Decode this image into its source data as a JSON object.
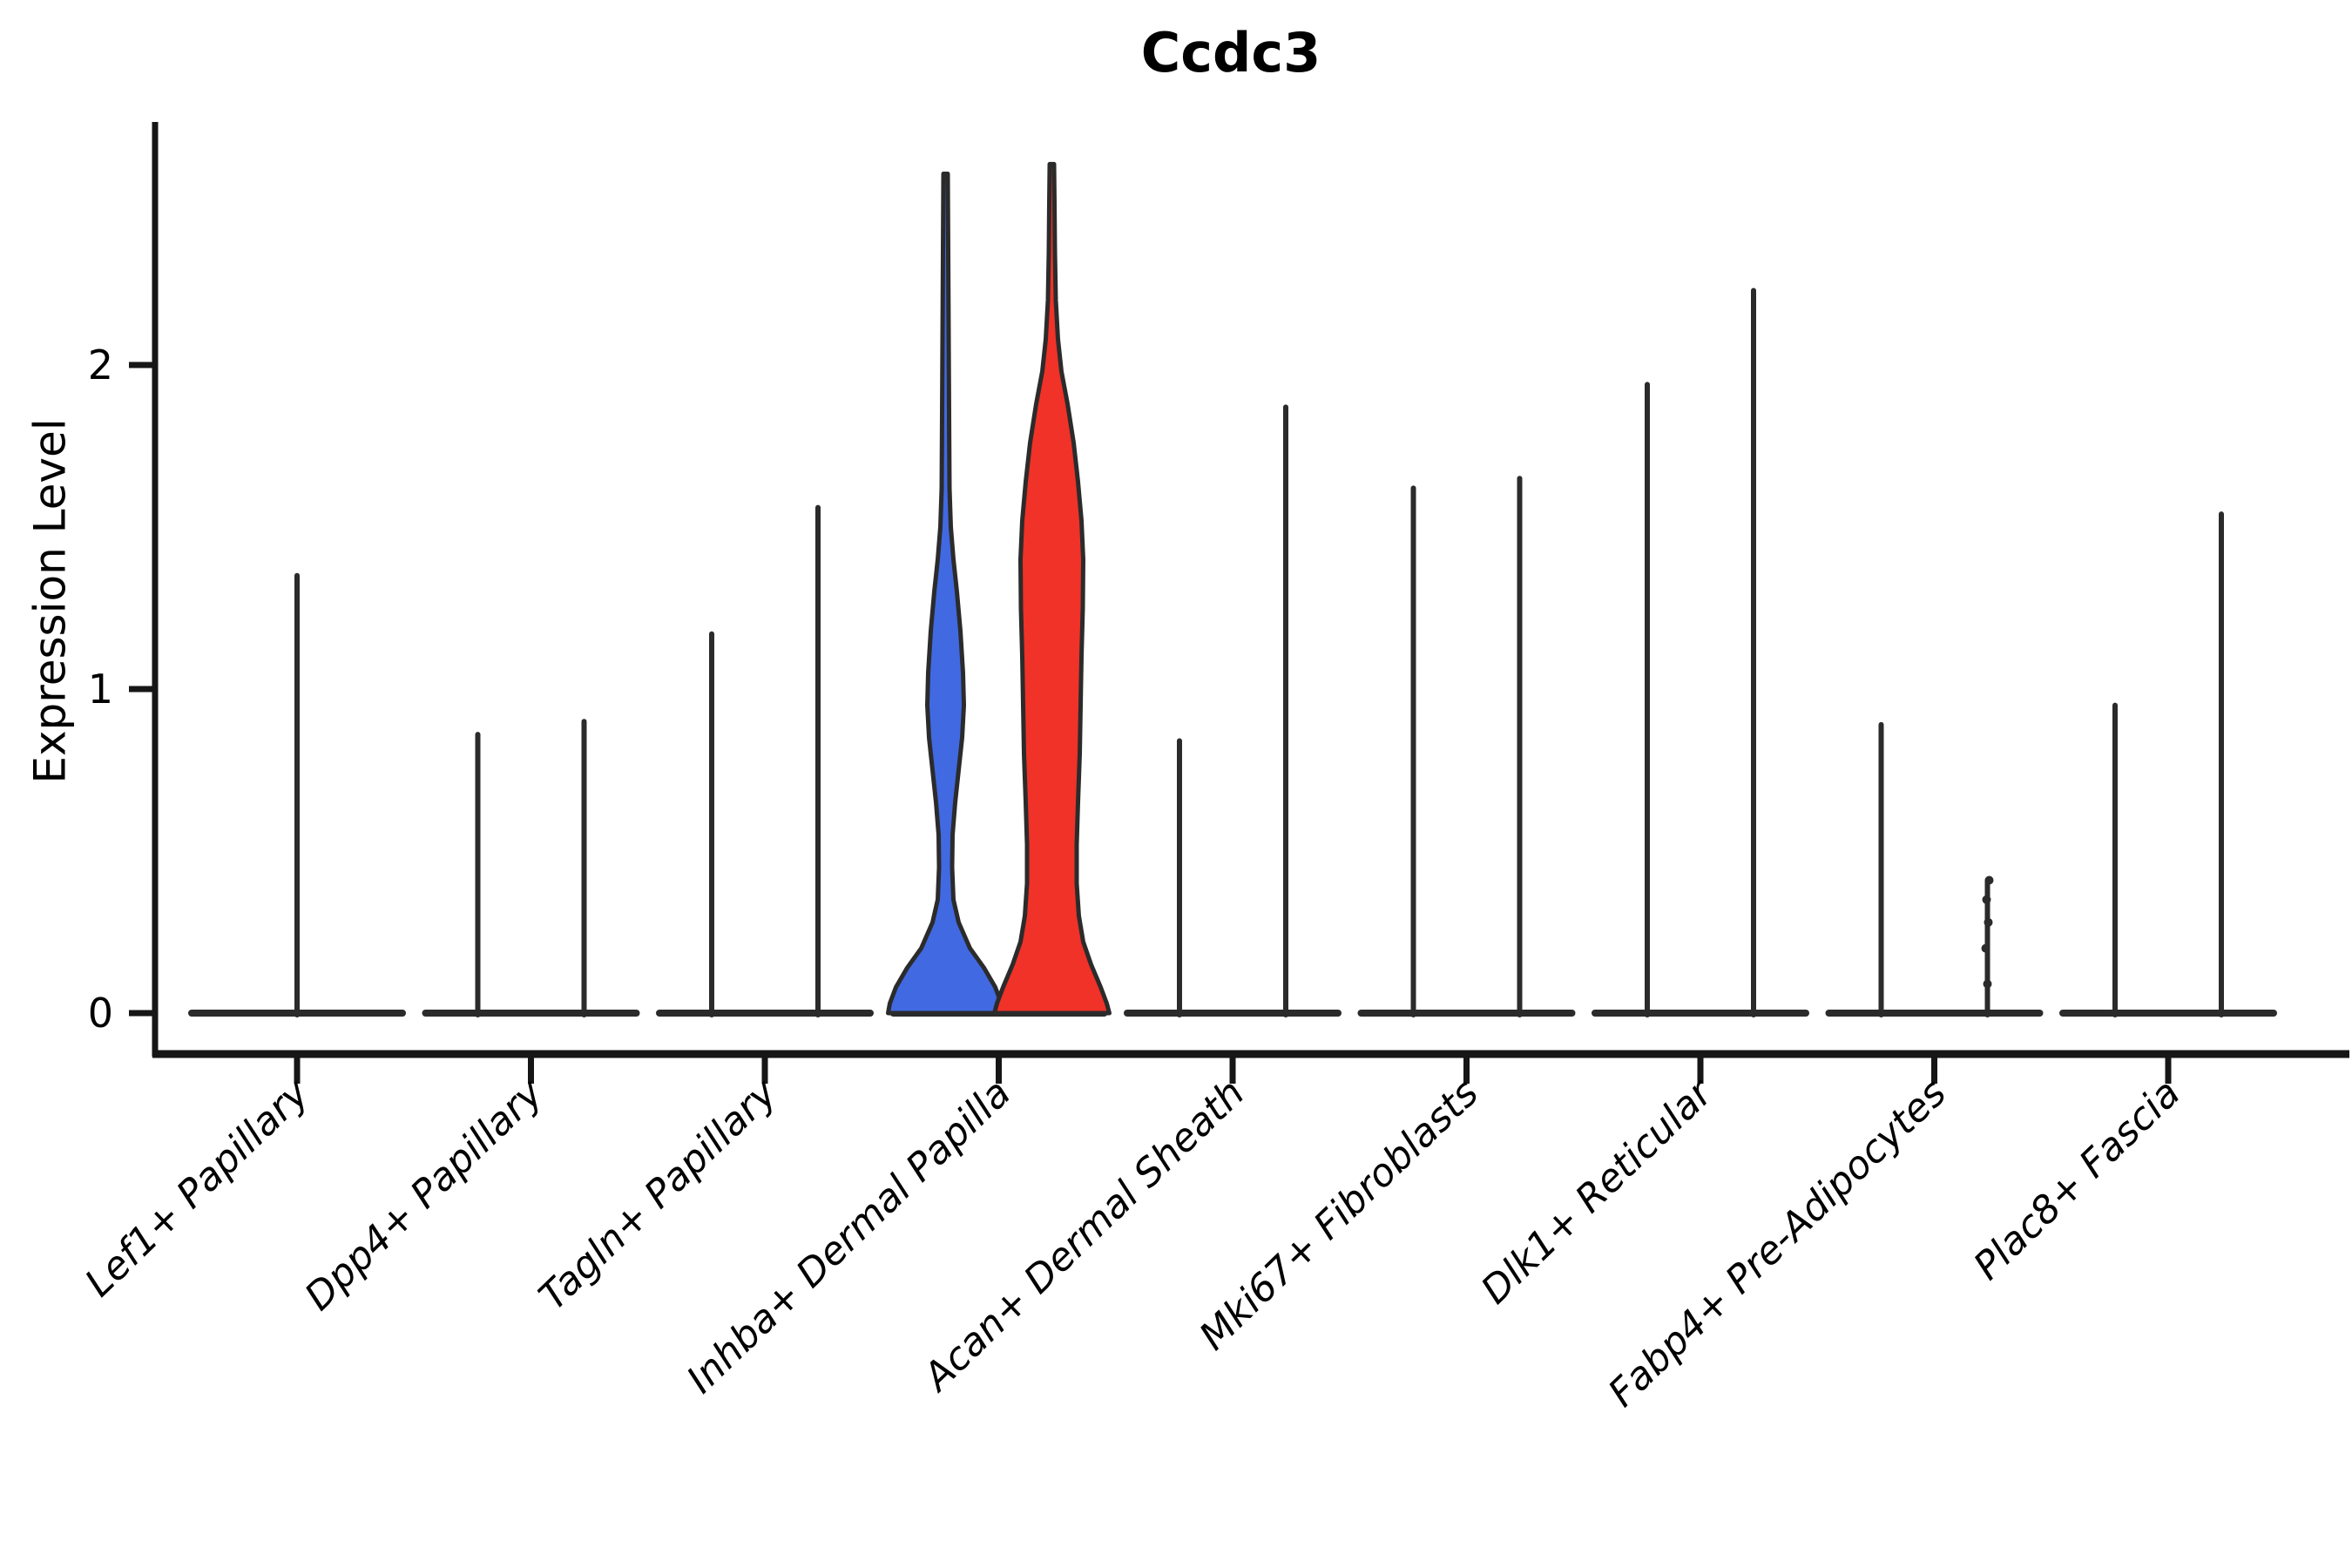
{
  "title": "Ccdc3",
  "axes": {
    "ylabel": "Expression Level",
    "yticks": [
      "0",
      "1",
      "2"
    ]
  },
  "chart_data": {
    "type": "violin",
    "title": "Ccdc3",
    "xlabel": "",
    "ylabel": "Expression Level",
    "yticks": [
      0,
      1,
      2
    ],
    "ylim": [
      0,
      2.75
    ],
    "grid": false,
    "legend": "none",
    "colors": {
      "blue_fill": "#4169E1",
      "red_fill": "#F03228",
      "outline": "#2B2B2B",
      "axis": "#161616",
      "text": "#000000"
    },
    "categories": [
      "Lef1+ Papillary",
      "Dpp4+ Papillary",
      "Tagln+ Papillary",
      "Inhba+ Dermal Papilla",
      "Acan+ Dermal Sheath",
      "Mki67+ Fibroblasts",
      "Dlk1+ Reticular",
      "Fabp4+ Pre-Adipocytes",
      "Plac8+ Fascia"
    ],
    "groups": [
      {
        "category": "Lef1+ Papillary",
        "violins": [
          {
            "pos": "center",
            "max": 1.35,
            "style": "spike"
          }
        ]
      },
      {
        "category": "Dpp4+ Papillary",
        "violins": [
          {
            "pos": "left",
            "max": 0.86,
            "style": "spike"
          },
          {
            "pos": "right",
            "max": 0.9,
            "style": "spike"
          }
        ]
      },
      {
        "category": "Tagln+ Papillary",
        "violins": [
          {
            "pos": "left",
            "max": 1.17,
            "style": "spike"
          },
          {
            "pos": "right",
            "max": 1.56,
            "style": "spike"
          }
        ]
      },
      {
        "category": "Inhba+ Dermal Papilla",
        "violins": [
          {
            "pos": "left",
            "max": 2.59,
            "style": "violin",
            "fill": "blue_fill",
            "profile": [
              [
                2.59,
                2.5
              ],
              [
                2.35,
                3
              ],
              [
                2.1,
                3.5
              ],
              [
                1.85,
                4
              ],
              [
                1.62,
                4.5
              ],
              [
                1.5,
                6
              ],
              [
                1.4,
                9
              ],
              [
                1.3,
                13
              ],
              [
                1.18,
                17
              ],
              [
                1.05,
                20
              ],
              [
                0.95,
                21
              ],
              [
                0.85,
                19
              ],
              [
                0.75,
                15
              ],
              [
                0.65,
                11
              ],
              [
                0.55,
                8
              ],
              [
                0.45,
                7.5
              ],
              [
                0.35,
                9
              ],
              [
                0.28,
                15
              ],
              [
                0.2,
                28
              ],
              [
                0.14,
                44
              ],
              [
                0.08,
                57
              ],
              [
                0.03,
                64
              ],
              [
                0.0,
                66
              ]
            ]
          },
          {
            "pos": "right",
            "max": 2.62,
            "style": "violin",
            "fill": "red_fill",
            "profile": [
              [
                2.62,
                2.5
              ],
              [
                2.5,
                3
              ],
              [
                2.35,
                3.5
              ],
              [
                2.2,
                4.5
              ],
              [
                2.08,
                7
              ],
              [
                1.98,
                11
              ],
              [
                1.88,
                18
              ],
              [
                1.76,
                25
              ],
              [
                1.64,
                30
              ],
              [
                1.52,
                34
              ],
              [
                1.4,
                36
              ],
              [
                1.25,
                35.5
              ],
              [
                1.1,
                34
              ],
              [
                0.95,
                33
              ],
              [
                0.8,
                32
              ],
              [
                0.65,
                30
              ],
              [
                0.52,
                28.5
              ],
              [
                0.4,
                28.5
              ],
              [
                0.3,
                31
              ],
              [
                0.22,
                36
              ],
              [
                0.15,
                45
              ],
              [
                0.08,
                56
              ],
              [
                0.03,
                63
              ],
              [
                0.0,
                66
              ]
            ]
          }
        ]
      },
      {
        "category": "Acan+ Dermal Sheath",
        "violins": [
          {
            "pos": "left",
            "max": 0.84,
            "style": "spike"
          },
          {
            "pos": "right",
            "max": 1.87,
            "style": "spike"
          }
        ]
      },
      {
        "category": "Mki67+ Fibroblasts",
        "violins": [
          {
            "pos": "left",
            "max": 1.62,
            "style": "spike"
          },
          {
            "pos": "right",
            "max": 1.65,
            "style": "spike"
          }
        ]
      },
      {
        "category": "Dlk1+ Reticular",
        "violins": [
          {
            "pos": "left",
            "max": 1.94,
            "style": "spike"
          },
          {
            "pos": "right",
            "max": 2.23,
            "style": "spike"
          }
        ]
      },
      {
        "category": "Fabp4+ Pre-Adipocytes",
        "violins": [
          {
            "pos": "left",
            "max": 0.89,
            "style": "spike"
          },
          {
            "pos": "right",
            "max": 0.41,
            "style": "spike",
            "points": [
              0.41,
              0.35,
              0.28,
              0.2,
              0.09
            ]
          }
        ]
      },
      {
        "category": "Plac8+ Fascia",
        "violins": [
          {
            "pos": "left",
            "max": 0.95,
            "style": "spike"
          },
          {
            "pos": "right",
            "max": 1.54,
            "style": "spike"
          }
        ]
      }
    ]
  }
}
